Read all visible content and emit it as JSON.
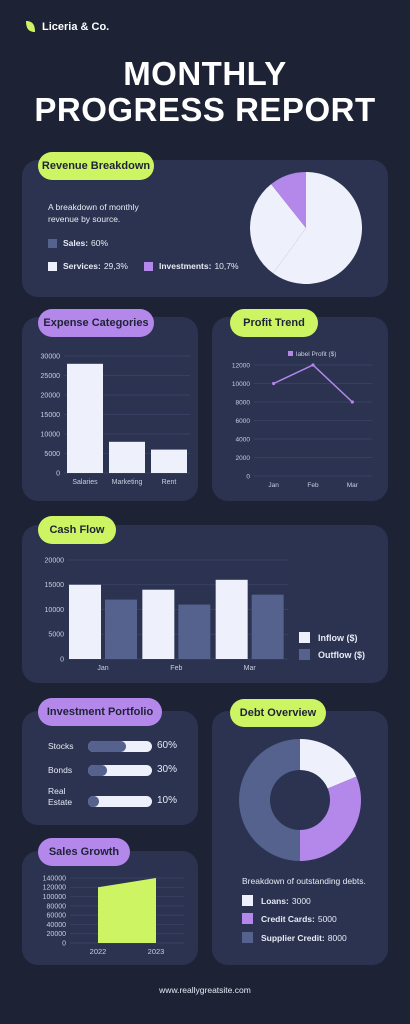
{
  "brand": {
    "name": "Liceria & Co."
  },
  "title": {
    "line1": "MONTHLY",
    "line2": "PROGRESS REPORT"
  },
  "footer": {
    "url": "www.reallygreatsite.com"
  },
  "colors": {
    "background": "#1d2335",
    "card": "#2b3350",
    "green": "#cdf463",
    "purple": "#b487ea",
    "light": "#eef0fb",
    "slate": "#55628d"
  },
  "revenue": {
    "label": "Revenue Breakdown",
    "description": "A breakdown of monthly revenue by source.",
    "legend": [
      {
        "name": "Sales:",
        "value": "60%",
        "color": "#55628d"
      },
      {
        "name": "Services:",
        "value": "29,3%",
        "color": "#eef0fb"
      },
      {
        "name": "Investments:",
        "value": "10,7%",
        "color": "#b487ea"
      }
    ]
  },
  "expenses": {
    "label": "Expense Categories"
  },
  "profit": {
    "label": "Profit Trend"
  },
  "cashflow": {
    "label": "Cash Flow"
  },
  "portfolio": {
    "label": "Investment Portfolio",
    "items": [
      {
        "name": "Stocks",
        "value": "60%",
        "fraction": 0.6
      },
      {
        "name": "Bonds",
        "value": "30%",
        "fraction": 0.3
      },
      {
        "name": "Real Estate",
        "value": "10%",
        "fraction": 0.1
      }
    ]
  },
  "sales_growth": {
    "label": "Sales Growth"
  },
  "debt": {
    "label": "Debt Overview",
    "description": "Breakdown of outstanding debts.",
    "legend": [
      {
        "name": "Loans:",
        "value": "3000",
        "color": "#eef0fb"
      },
      {
        "name": "Credit Cards:",
        "value": "5000",
        "color": "#b487ea"
      },
      {
        "name": "Supplier Credit:",
        "value": "8000",
        "color": "#55628d"
      }
    ]
  },
  "chart_data": [
    {
      "id": "revenue",
      "type": "pie",
      "categories": [
        "Sales",
        "Services",
        "Investments"
      ],
      "values": [
        60,
        29.3,
        10.7
      ],
      "colors": [
        "#eef0fb",
        "#eef0fb",
        "#b487ea"
      ]
    },
    {
      "id": "expenses",
      "type": "bar",
      "categories": [
        "Salaries",
        "Marketing",
        "Rent"
      ],
      "values": [
        28000,
        8000,
        6000
      ],
      "yticks": [
        "0",
        "5000",
        "10000",
        "15000",
        "20000",
        "25000",
        "30000"
      ],
      "ylim": [
        0,
        30000
      ],
      "grid": true
    },
    {
      "id": "profit",
      "type": "line",
      "categories": [
        "Jan",
        "Feb",
        "Mar"
      ],
      "series": [
        {
          "name": "label Profit ($)",
          "values": [
            10000,
            12000,
            8000
          ]
        }
      ],
      "yticks": [
        "0",
        "2000",
        "4000",
        "6000",
        "8000",
        "10000",
        "12000"
      ],
      "ylim": [
        0,
        12000
      ],
      "grid": true,
      "legend": "top"
    },
    {
      "id": "cashflow",
      "type": "bar",
      "categories": [
        "Jan",
        "Feb",
        "Mar"
      ],
      "series": [
        {
          "name": "Inflow ($)",
          "values": [
            15000,
            14000,
            16000
          ]
        },
        {
          "name": "Outflow ($)",
          "values": [
            12000,
            11000,
            13000
          ]
        }
      ],
      "yticks": [
        "0",
        "5000",
        "10000",
        "15000",
        "20000"
      ],
      "ylim": [
        0,
        20000
      ],
      "grid": true,
      "legend": "right"
    },
    {
      "id": "sales_growth",
      "type": "area",
      "categories": [
        "2022",
        "2023"
      ],
      "values": [
        120000,
        140000
      ],
      "yticks": [
        "0",
        "20000",
        "40000",
        "60000",
        "80000",
        "100000",
        "120000",
        "140000"
      ],
      "ylim": [
        0,
        140000
      ],
      "grid": true
    },
    {
      "id": "debt",
      "type": "pie",
      "categories": [
        "Loans",
        "Credit Cards",
        "Supplier Credit"
      ],
      "values": [
        3000,
        5000,
        8000
      ],
      "colors": [
        "#eef0fb",
        "#b487ea",
        "#55628d"
      ],
      "donut": true
    }
  ]
}
